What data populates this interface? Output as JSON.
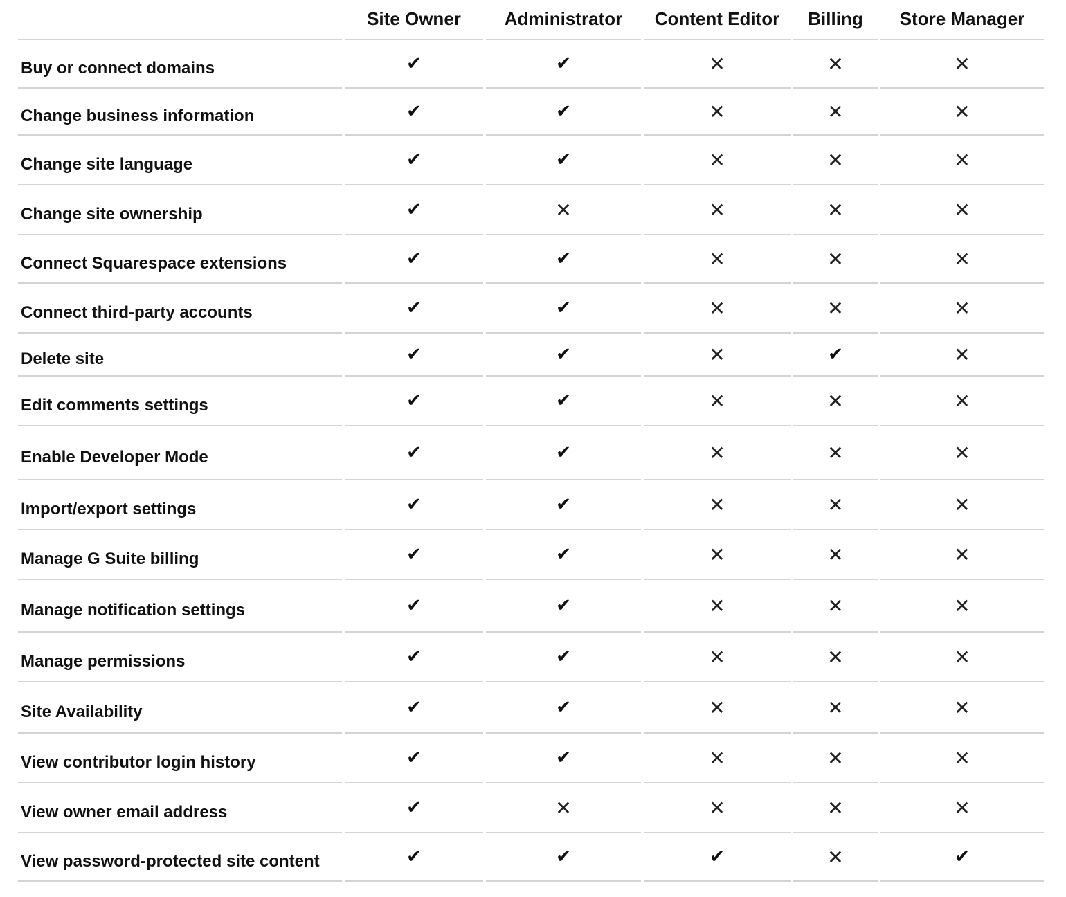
{
  "table": {
    "columns": [
      "Site Owner",
      "Administrator",
      "Content Editor",
      "Billing",
      "Store Manager"
    ],
    "rows": [
      {
        "label": "Buy or connect domains",
        "cells": [
          "✔",
          "✔",
          "✕",
          "✕",
          "✕"
        ]
      },
      {
        "label": "Change business information",
        "cells": [
          "✔",
          "✔",
          "✕",
          "✕",
          "✕"
        ]
      },
      {
        "label": "Change site language",
        "cells": [
          "✔",
          "✔",
          "✕",
          "✕",
          "✕"
        ]
      },
      {
        "label": "Change site ownership",
        "cells": [
          "✔",
          "✕",
          "✕",
          "✕",
          "✕"
        ]
      },
      {
        "label": "Connect Squarespace extensions",
        "cells": [
          "✔",
          "✔",
          "✕",
          "✕",
          "✕"
        ]
      },
      {
        "label": "Connect third-party accounts",
        "cells": [
          "✔",
          "✔",
          "✕",
          "✕",
          "✕"
        ]
      },
      {
        "label": "Delete site",
        "cells": [
          "✔",
          "✔",
          "✕",
          "✔",
          "✕"
        ]
      },
      {
        "label": "Edit comments settings",
        "cells": [
          "✔",
          "✔",
          "✕",
          "✕",
          "✕"
        ]
      },
      {
        "label": "Enable Developer Mode",
        "cells": [
          "✔",
          "✔",
          "✕",
          "✕",
          "✕"
        ]
      },
      {
        "label": "Import/export settings",
        "cells": [
          "✔",
          "✔",
          "✕",
          "✕",
          "✕"
        ]
      },
      {
        "label": "Manage G Suite billing",
        "cells": [
          "✔",
          "✔",
          "✕",
          "✕",
          "✕"
        ]
      },
      {
        "label": "Manage notification settings",
        "cells": [
          "✔",
          "✔",
          "✕",
          "✕",
          "✕"
        ]
      },
      {
        "label": "Manage permissions",
        "cells": [
          "✔",
          "✔",
          "✕",
          "✕",
          "✕"
        ]
      },
      {
        "label": "Site Availability",
        "cells": [
          "✔",
          "✔",
          "✕",
          "✕",
          "✕"
        ]
      },
      {
        "label": "View contributor login history",
        "cells": [
          "✔",
          "✔",
          "✕",
          "✕",
          "✕"
        ]
      },
      {
        "label": "View owner email address",
        "cells": [
          "✔",
          "✕",
          "✕",
          "✕",
          "✕"
        ]
      },
      {
        "label": "View password-protected site content",
        "cells": [
          "✔",
          "✔",
          "✔",
          "✕",
          "✔"
        ]
      }
    ]
  }
}
